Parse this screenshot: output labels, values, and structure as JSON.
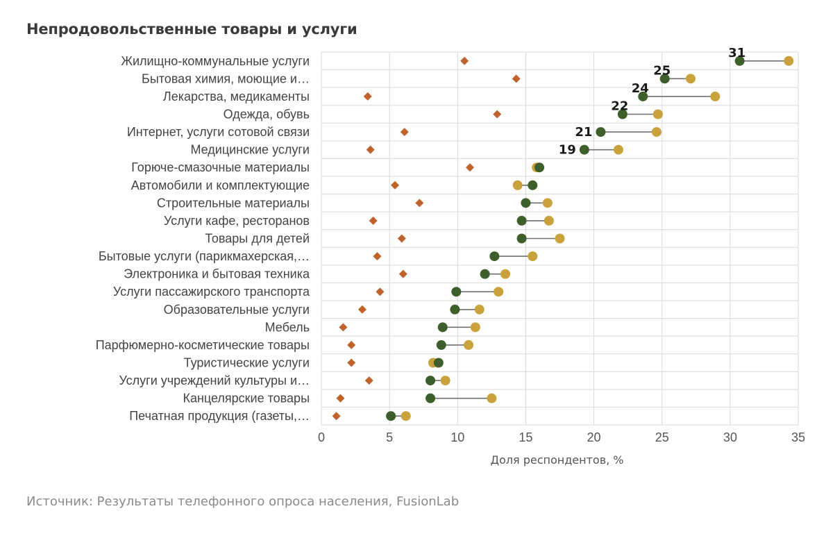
{
  "chart_data": {
    "type": "dumbbell",
    "title": "Непродовольственные товары и услуги",
    "xlabel": "Доля респондентов, %",
    "source": "Источник: Результаты телефонного опроса населения, FusionLab",
    "xlim": [
      0,
      35
    ],
    "xticks": [
      0,
      5,
      10,
      15,
      20,
      25,
      30,
      35
    ],
    "grid": true,
    "colors": {
      "diamond": "#c0622b",
      "dark": "#3e5e2c",
      "gold": "#c9a23b",
      "connector": "#6f6f6f",
      "grid": "#d9d9d9"
    },
    "categories": [
      "Жилищно-коммунальные услуги",
      "Бытовая химия, моющие и…",
      "Лекарства, медикаменты",
      "Одежда, обувь",
      "Интернет, услуги сотовой связи",
      "Медицинские услуги",
      "Горюче-смазочные материалы",
      "Автомобили и комплектующие",
      "Строительные материалы",
      "Услуги кафе, ресторанов",
      "Товары для детей",
      "Бытовые услуги (парикмахерская,…",
      "Электроника и бытовая техника",
      "Услуги пассажирского транспорта",
      "Образовательные услуги",
      "Мебель",
      "Парфюмерно-косметические товары",
      "Туристические услуги",
      "Услуги учреждений культуры и…",
      "Канцелярские товары",
      "Печатная продукция (газеты,…"
    ],
    "series": [
      {
        "marker": "diamond",
        "values": [
          10.5,
          14.3,
          3.4,
          12.9,
          6.1,
          3.6,
          10.9,
          5.4,
          7.2,
          3.8,
          5.9,
          4.1,
          6.0,
          4.3,
          3.0,
          1.6,
          2.2,
          2.2,
          3.5,
          1.4,
          1.1
        ]
      },
      {
        "marker": "dark",
        "values": [
          30.7,
          25.2,
          23.6,
          22.1,
          20.5,
          19.3,
          16.0,
          15.5,
          15.0,
          14.7,
          14.7,
          12.7,
          12.0,
          9.9,
          9.8,
          8.9,
          8.8,
          8.6,
          8.0,
          8.0,
          5.1
        ]
      },
      {
        "marker": "gold",
        "values": [
          34.3,
          27.1,
          28.9,
          24.7,
          24.6,
          21.8,
          15.8,
          14.4,
          16.6,
          16.7,
          17.5,
          15.5,
          13.5,
          13.0,
          11.6,
          11.3,
          10.8,
          8.2,
          9.1,
          12.5,
          6.2
        ]
      }
    ],
    "data_labels": [
      {
        "index": 0,
        "text": "31"
      },
      {
        "index": 1,
        "text": "25"
      },
      {
        "index": 2,
        "text": "24"
      },
      {
        "index": 3,
        "text": "22"
      },
      {
        "index": 4,
        "text": "21"
      },
      {
        "index": 5,
        "text": "19"
      }
    ]
  }
}
